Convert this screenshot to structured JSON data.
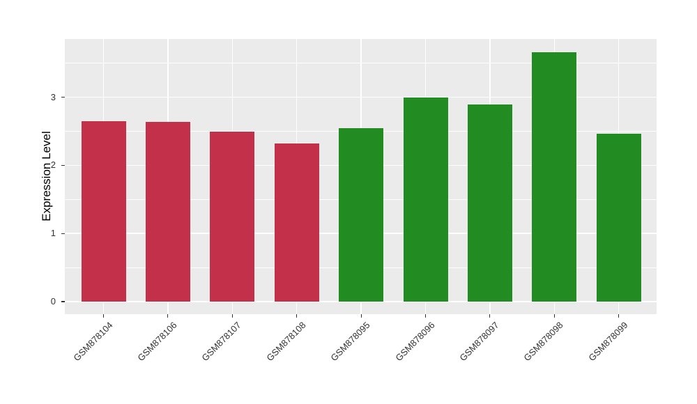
{
  "chart_data": {
    "type": "bar",
    "title": "",
    "xlabel": "",
    "ylabel": "Expression Level",
    "categories": [
      "GSM878104",
      "GSM878106",
      "GSM878107",
      "GSM878108",
      "GSM878095",
      "GSM878096",
      "GSM878097",
      "GSM878098",
      "GSM878099"
    ],
    "values": [
      2.65,
      2.64,
      2.5,
      2.32,
      2.55,
      3.0,
      2.89,
      3.66,
      2.46
    ],
    "groups": [
      "red",
      "red",
      "red",
      "red",
      "green",
      "green",
      "green",
      "green",
      "green"
    ],
    "group_colors": {
      "red": "#C2304A",
      "green": "#228B22"
    },
    "ylim": [
      -0.18,
      3.85
    ],
    "yticks": [
      0,
      1,
      2,
      3
    ],
    "yminor": [
      0.5,
      1.5,
      2.5,
      3.5
    ],
    "grid": "on",
    "legend": "none",
    "panel_bg": "#EBEBEB",
    "grid_color": "#FFFFFF",
    "axis_text_color": "#333333"
  }
}
